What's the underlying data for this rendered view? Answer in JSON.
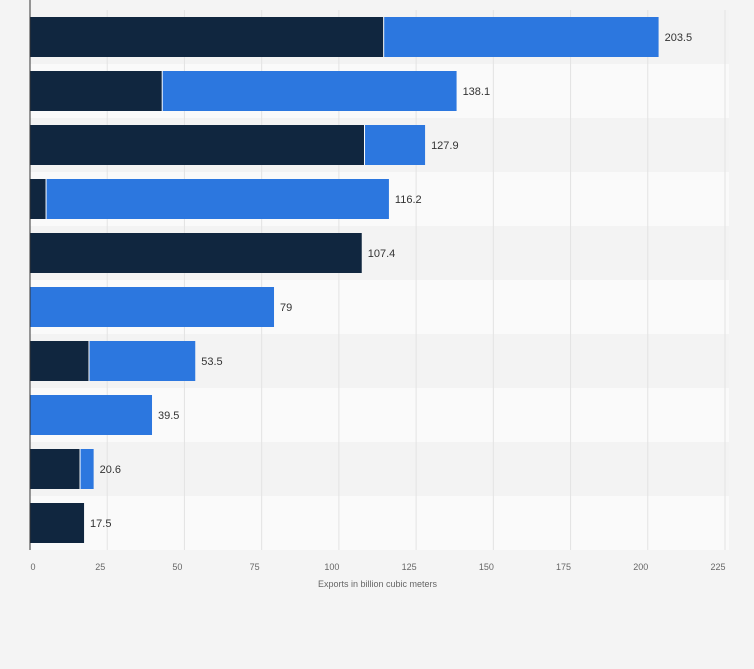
{
  "chart_data": {
    "type": "bar",
    "orientation": "horizontal",
    "stacked": true,
    "categories": [
      "",
      "",
      "",
      "",
      "",
      "",
      "",
      "",
      "",
      ""
    ],
    "series": [
      {
        "name": "",
        "color": "#10263f",
        "values": [
          114.5,
          42.8,
          108.3,
          5.2,
          107.4,
          0,
          19.1,
          0,
          16.2,
          17.5
        ]
      },
      {
        "name": "",
        "color": "#2c77df",
        "values": [
          89.0,
          95.3,
          19.6,
          111.0,
          0,
          79.0,
          34.4,
          39.5,
          4.4,
          0
        ]
      }
    ],
    "totals": [
      203.5,
      138.1,
      127.9,
      116.2,
      107.4,
      79,
      53.5,
      39.5,
      20.6,
      17.5
    ],
    "total_labels": [
      "203.5",
      "138.1",
      "127.9",
      "116.2",
      "107.4",
      "79",
      "53.5",
      "39.5",
      "20.6",
      "17.5"
    ],
    "x_ticks": [
      0,
      25,
      50,
      75,
      100,
      125,
      150,
      175,
      200,
      225
    ],
    "x_tick_labels": [
      "0",
      "25",
      "50",
      "75",
      "100",
      "125",
      "150",
      "175",
      "200",
      "225"
    ],
    "xlim": [
      0,
      225
    ],
    "xlabel": "Exports in billion cubic meters",
    "ylabel": "",
    "title": "",
    "grid": true,
    "legend": "none"
  },
  "colors": {
    "background": "#f4f4f4",
    "band_light": "#fafafa",
    "band_dark": "#f3f3f3",
    "grid": "#e3e3e3",
    "axis": "#333333"
  }
}
